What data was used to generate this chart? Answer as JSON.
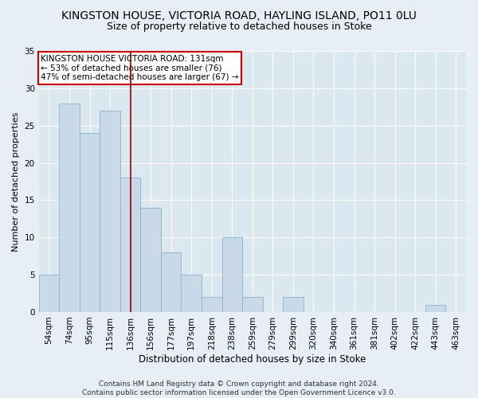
{
  "title1": "KINGSTON HOUSE, VICTORIA ROAD, HAYLING ISLAND, PO11 0LU",
  "title2": "Size of property relative to detached houses in Stoke",
  "xlabel": "Distribution of detached houses by size in Stoke",
  "ylabel": "Number of detached properties",
  "categories": [
    "54sqm",
    "74sqm",
    "95sqm",
    "115sqm",
    "136sqm",
    "156sqm",
    "177sqm",
    "197sqm",
    "218sqm",
    "238sqm",
    "259sqm",
    "279sqm",
    "299sqm",
    "320sqm",
    "340sqm",
    "361sqm",
    "381sqm",
    "402sqm",
    "422sqm",
    "443sqm",
    "463sqm"
  ],
  "values": [
    5,
    28,
    24,
    27,
    18,
    14,
    8,
    5,
    2,
    10,
    2,
    0,
    2,
    0,
    0,
    0,
    0,
    0,
    0,
    1,
    0
  ],
  "bar_color": "#c9d9e8",
  "bar_edge_color": "#8ab4cc",
  "vline_x": 4,
  "vline_color": "#8b0000",
  "annotation_text": "KINGSTON HOUSE VICTORIA ROAD: 131sqm\n← 53% of detached houses are smaller (76)\n47% of semi-detached houses are larger (67) →",
  "annotation_box_color": "white",
  "annotation_box_edge_color": "#cc0000",
  "ylim": [
    0,
    35
  ],
  "yticks": [
    0,
    5,
    10,
    15,
    20,
    25,
    30,
    35
  ],
  "footnote": "Contains HM Land Registry data © Crown copyright and database right 2024.\nContains public sector information licensed under the Open Government Licence v3.0.",
  "bg_color": "#e8eef5",
  "plot_bg_color": "#dce8f0",
  "grid_color": "white",
  "title1_fontsize": 10,
  "title2_fontsize": 9,
  "xlabel_fontsize": 8.5,
  "ylabel_fontsize": 8,
  "tick_fontsize": 7.5,
  "annotation_fontsize": 7.5,
  "footnote_fontsize": 6.5
}
